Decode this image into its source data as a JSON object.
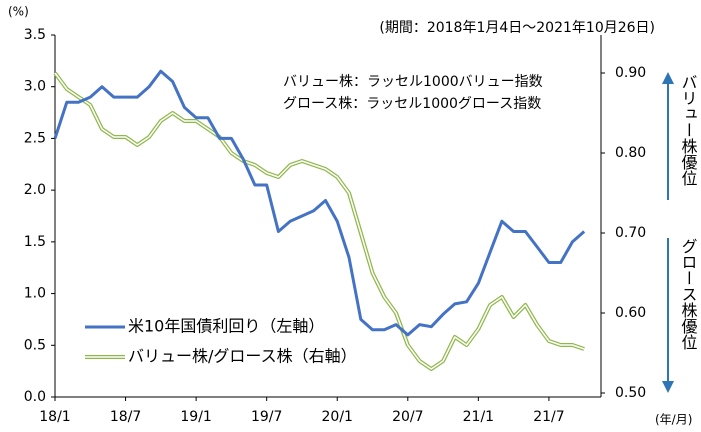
{
  "chart_data": {
    "type": "line",
    "period_note": "(期間：2018年1月4日～2021年10月26日)",
    "notes": [
      "バリュー株：ラッセル1000バリュー指数",
      "グロース株：ラッセル1000グロース指数"
    ],
    "y_unit": "(%)",
    "x_unit": "(年/月)",
    "y2_top_label": "バリュー株優位",
    "y2_bottom_label": "グロース株優位",
    "categories": [
      "18/1",
      null,
      null,
      null,
      null,
      null,
      "18/7",
      null,
      null,
      null,
      null,
      null,
      "19/1",
      null,
      null,
      null,
      null,
      null,
      "19/7",
      null,
      null,
      null,
      null,
      null,
      "20/1",
      null,
      null,
      null,
      null,
      null,
      "20/7",
      null,
      null,
      null,
      null,
      null,
      "21/1",
      null,
      null,
      null,
      null,
      null,
      "21/7",
      null,
      null,
      null
    ],
    "ylim": [
      0,
      3.5
    ],
    "yticks": [
      {
        "value": 0,
        "label": "0.0"
      },
      {
        "value": 0.5,
        "label": "0.5"
      },
      {
        "value": 1,
        "label": "1.0"
      },
      {
        "value": 1.5,
        "label": "1.5"
      },
      {
        "value": 2,
        "label": "2.0"
      },
      {
        "value": 2.5,
        "label": "2.5"
      },
      {
        "value": 3,
        "label": "3.0"
      },
      {
        "value": 3.5,
        "label": "3.5"
      }
    ],
    "y2lim": [
      0.495,
      0.9475
    ],
    "y2ticks": [
      {
        "value": 0.5,
        "label": "0.50"
      },
      {
        "value": 0.6,
        "label": "0.60"
      },
      {
        "value": 0.7,
        "label": "0.70"
      },
      {
        "value": 0.8,
        "label": "0.80"
      },
      {
        "value": 0.9,
        "label": "0.90"
      }
    ],
    "series": [
      {
        "name": "米10年国債利回り（左軸）",
        "color": "#4472c4",
        "values": [
          2.5,
          2.85,
          2.85,
          2.9,
          3.0,
          2.9,
          2.9,
          2.9,
          3.0,
          3.15,
          3.05,
          2.8,
          2.7,
          2.7,
          2.5,
          2.5,
          2.3,
          2.05,
          2.05,
          1.6,
          1.7,
          1.75,
          1.8,
          1.9,
          1.7,
          1.35,
          0.75,
          0.65,
          0.65,
          0.7,
          0.6,
          0.7,
          0.68,
          0.8,
          0.9,
          0.92,
          1.1,
          1.4,
          1.7,
          1.6,
          1.6,
          1.45,
          1.3,
          1.3,
          1.5,
          1.6
        ]
      },
      {
        "name": "バリュー株/グロース株（右軸）",
        "color": "#8fb84a",
        "axis": "y2",
        "values": [
          0.9,
          0.88,
          0.87,
          0.86,
          0.83,
          0.82,
          0.82,
          0.81,
          0.82,
          0.84,
          0.85,
          0.84,
          0.84,
          0.83,
          0.82,
          0.8,
          0.79,
          0.785,
          0.775,
          0.77,
          0.785,
          0.79,
          0.785,
          0.78,
          0.77,
          0.75,
          0.7,
          0.65,
          0.62,
          0.6,
          0.56,
          0.54,
          0.53,
          0.54,
          0.57,
          0.56,
          0.58,
          0.61,
          0.62,
          0.595,
          0.61,
          0.585,
          0.565,
          0.56,
          0.56,
          0.555
        ]
      }
    ]
  }
}
